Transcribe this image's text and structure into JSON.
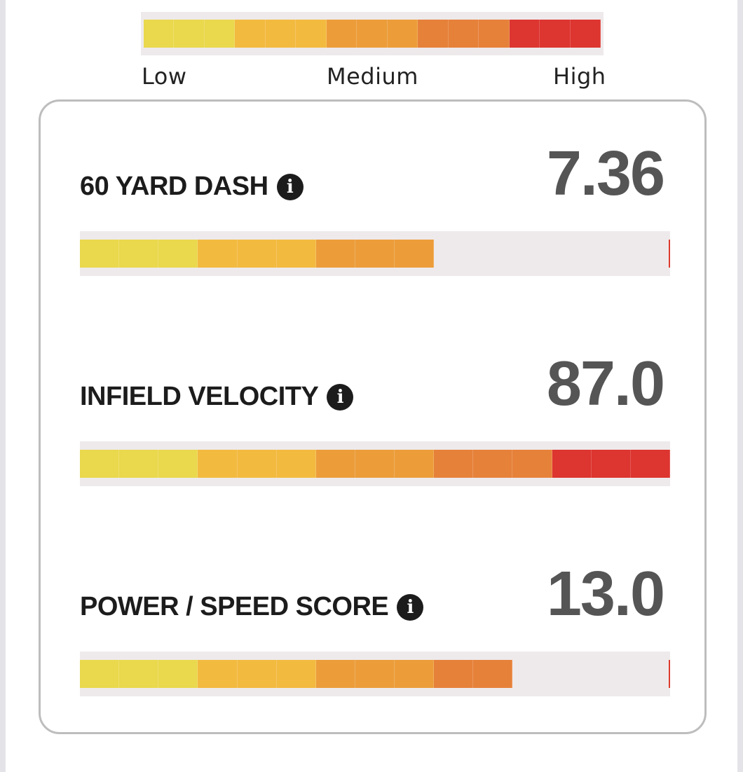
{
  "legend": {
    "colors": [
      "#ead84d",
      "#ead84d",
      "#ead84d",
      "#f3ba40",
      "#f3ba40",
      "#f3ba40",
      "#ec9d3a",
      "#ec9d3a",
      "#ec9d3a",
      "#e6813a",
      "#e6813a",
      "#e6813a",
      "#dd3530",
      "#dd3530",
      "#dd3530"
    ],
    "low": "Low",
    "medium": "Medium",
    "high": "High"
  },
  "segment_colors": [
    "#ead84d",
    "#ead84d",
    "#ead84d",
    "#f3ba40",
    "#f3ba40",
    "#f3ba40",
    "#ec9d3a",
    "#ec9d3a",
    "#ec9d3a",
    "#e6813a",
    "#e6813a",
    "#e6813a",
    "#dd3530",
    "#dd3530",
    "#dd3530"
  ],
  "metrics": [
    {
      "label": "60 YARD DASH",
      "value": "7.36",
      "filled_segments": 9,
      "total_segments": 15,
      "info_icon": "info-icon"
    },
    {
      "label": "INFIELD VELOCITY",
      "value": "87.0",
      "filled_segments": 15,
      "total_segments": 15,
      "info_icon": "info-icon"
    },
    {
      "label": "POWER / SPEED SCORE",
      "value": "13.0",
      "filled_segments": 11,
      "total_segments": 15,
      "info_icon": "info-icon"
    }
  ]
}
